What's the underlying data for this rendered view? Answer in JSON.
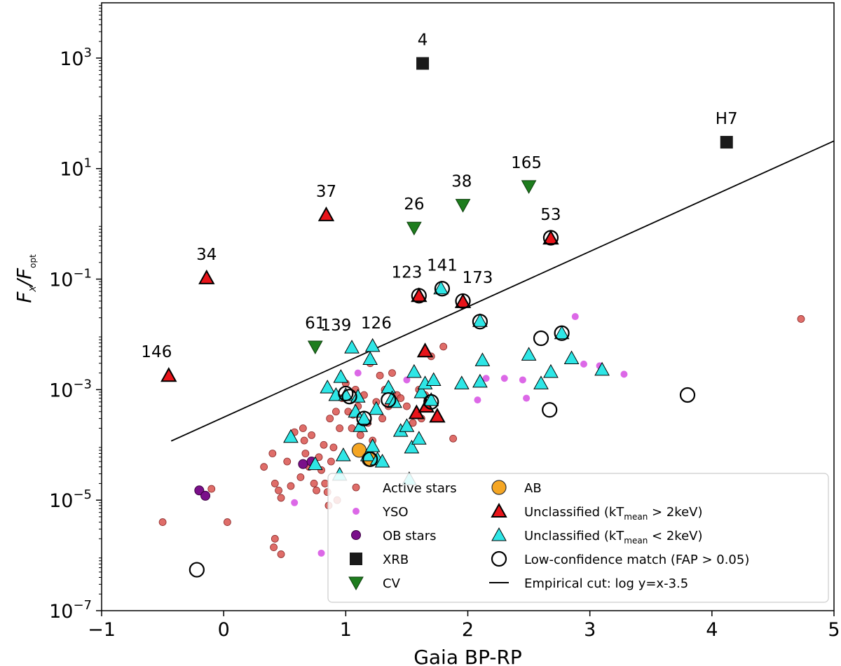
{
  "chart_data": {
    "type": "scatter",
    "title": "",
    "xlabel": "Gaia BP-RP",
    "ylabel": {
      "main": "F",
      "sub_x": "X",
      "sep": "/F",
      "sub_opt": "opt"
    },
    "xscale": "linear",
    "yscale": "log",
    "xlim": [
      -1,
      5
    ],
    "ylim": [
      1e-07,
      10000
    ],
    "x_ticks": [
      -1,
      0,
      1,
      2,
      3,
      4,
      5
    ],
    "x_tick_labels": [
      "−1",
      "0",
      "1",
      "2",
      "3",
      "4",
      "5"
    ],
    "y_ticks": [
      {
        "value": 1e-07,
        "base": "10",
        "exp": "−7"
      },
      {
        "value": 1e-05,
        "base": "10",
        "exp": "−5"
      },
      {
        "value": 0.001,
        "base": "10",
        "exp": "−3"
      },
      {
        "value": 0.1,
        "base": "10",
        "exp": "−1"
      },
      {
        "value": 10,
        "base": "10",
        "exp": "1"
      },
      {
        "value": 1000,
        "base": "10",
        "exp": "3"
      }
    ],
    "grid": false,
    "legend_position": "lower-right",
    "empirical_cut": {
      "label": "Empirical cut: log y=x-3.5",
      "x": [
        -0.43,
        5.0
      ],
      "log_y": [
        -3.93,
        1.5
      ]
    },
    "series": [
      {
        "name": "Active stars",
        "marker": "circle-small",
        "color": "#d9534f",
        "points": [
          [
            -0.5,
            4e-06
          ],
          [
            0.03,
            4e-06
          ],
          [
            -0.1,
            1.6e-05
          ],
          [
            0.33,
            4e-05
          ],
          [
            0.4,
            7e-05
          ],
          [
            0.42,
            2e-05
          ],
          [
            0.45,
            1.5e-05
          ],
          [
            0.47,
            1.1e-05
          ],
          [
            0.42,
            2e-06
          ],
          [
            0.41,
            1.4e-06
          ],
          [
            0.47,
            1.05e-06
          ],
          [
            0.52,
            5e-05
          ],
          [
            0.55,
            1.8e-05
          ],
          [
            0.58,
            0.00017
          ],
          [
            0.63,
            2.6e-05
          ],
          [
            0.65,
            0.0002
          ],
          [
            0.66,
            0.00012
          ],
          [
            0.67,
            7e-05
          ],
          [
            0.7,
            4e-05
          ],
          [
            0.72,
            0.00015
          ],
          [
            0.74,
            2e-05
          ],
          [
            0.76,
            1.5e-05
          ],
          [
            0.78,
            6e-05
          ],
          [
            0.8,
            3.5e-05
          ],
          [
            0.82,
            0.0001
          ],
          [
            0.83,
            2e-05
          ],
          [
            0.85,
            1.4e-05
          ],
          [
            0.86,
            8e-06
          ],
          [
            0.87,
            0.0003
          ],
          [
            0.88,
            5e-05
          ],
          [
            0.9,
            9e-05
          ],
          [
            0.92,
            0.0004
          ],
          [
            0.93,
            1e-05
          ],
          [
            0.95,
            0.0002
          ],
          [
            0.97,
            0.0007
          ],
          [
            1.0,
            0.0013
          ],
          [
            1.02,
            0.0004
          ],
          [
            1.05,
            0.0002
          ],
          [
            1.06,
            0.00035
          ],
          [
            1.08,
            0.001
          ],
          [
            1.1,
            0.0005
          ],
          [
            1.12,
            0.00015
          ],
          [
            1.15,
            0.0008
          ],
          [
            1.18,
            0.00025
          ],
          [
            1.2,
            0.003
          ],
          [
            1.22,
            0.00012
          ],
          [
            1.25,
            0.0006
          ],
          [
            1.28,
            0.0018
          ],
          [
            1.3,
            0.0003
          ],
          [
            1.32,
            0.001
          ],
          [
            1.35,
            0.0005
          ],
          [
            1.38,
            0.002
          ],
          [
            1.42,
            0.0008
          ],
          [
            1.45,
            0.0007
          ],
          [
            1.5,
            0.0005
          ],
          [
            1.55,
            0.00025
          ],
          [
            1.6,
            0.001
          ],
          [
            1.62,
            0.0003
          ],
          [
            1.65,
            0.0008
          ],
          [
            1.7,
            0.004
          ],
          [
            1.72,
            0.0015
          ],
          [
            1.8,
            0.006
          ],
          [
            1.88,
            0.00013
          ],
          [
            4.73,
            0.019
          ]
        ]
      },
      {
        "name": "YSO",
        "marker": "circle-small",
        "color": "#d64de3",
        "points": [
          [
            0.58,
            9e-06
          ],
          [
            0.8,
            1.1e-06
          ],
          [
            1.1,
            0.002
          ],
          [
            1.5,
            0.0015
          ],
          [
            2.08,
            0.00065
          ],
          [
            2.15,
            0.0016
          ],
          [
            2.3,
            0.0016
          ],
          [
            2.45,
            0.0015
          ],
          [
            2.48,
            0.0007
          ],
          [
            2.88,
            0.021
          ],
          [
            2.95,
            0.0029
          ],
          [
            3.08,
            0.0027
          ],
          [
            3.28,
            0.0019
          ]
        ]
      },
      {
        "name": "OB stars",
        "marker": "circle",
        "color": "#7a0f8a",
        "points": [
          [
            -0.2,
            1.5e-05
          ],
          [
            -0.15,
            1.2e-05
          ],
          [
            0.65,
            4.5e-05
          ],
          [
            0.72,
            5e-05
          ]
        ]
      },
      {
        "name": "XRB",
        "marker": "square",
        "color": "#1a1a1a",
        "points": [
          [
            1.63,
            800
          ],
          [
            4.12,
            30
          ]
        ]
      },
      {
        "name": "CV",
        "marker": "triangle-down",
        "color": "#1e7d1e",
        "points": [
          [
            0.75,
            0.006
          ],
          [
            1.56,
            0.85
          ],
          [
            1.96,
            2.2
          ],
          [
            2.5,
            4.8
          ]
        ]
      },
      {
        "name": "AB",
        "marker": "circle-large",
        "color": "#f5a623",
        "points": [
          [
            1.11,
            8e-05
          ],
          [
            1.19,
            5.5e-05
          ]
        ]
      },
      {
        "name": "Unclassified (kT_mean > 2keV)",
        "marker": "triangle-up",
        "color": "#e8141a",
        "points": [
          [
            -0.45,
            0.0018
          ],
          [
            -0.14,
            0.105
          ],
          [
            0.84,
            1.45
          ],
          [
            1.6,
            0.05
          ],
          [
            1.58,
            0.00038
          ],
          [
            1.65,
            0.005
          ],
          [
            1.66,
            0.0005
          ],
          [
            1.75,
            0.00033
          ],
          [
            1.96,
            0.039
          ],
          [
            2.68,
            0.55
          ]
        ]
      },
      {
        "name": "Unclassified (kT_mean < 2keV)",
        "marker": "triangle-up",
        "color": "#2ee6e6",
        "points": [
          [
            0.55,
            0.00014
          ],
          [
            0.75,
            4.5e-05
          ],
          [
            0.85,
            0.0011
          ],
          [
            0.92,
            0.0008
          ],
          [
            0.95,
            2.9e-05
          ],
          [
            0.96,
            0.0017
          ],
          [
            0.98,
            6.5e-05
          ],
          [
            1.0,
            0.0008
          ],
          [
            1.05,
            0.0058
          ],
          [
            1.08,
            0.0004
          ],
          [
            1.1,
            0.00075
          ],
          [
            1.12,
            0.00022
          ],
          [
            1.15,
            0.0003
          ],
          [
            1.18,
            6.5e-05
          ],
          [
            1.2,
            0.0036
          ],
          [
            1.22,
            9.5e-05
          ],
          [
            1.22,
            0.0062
          ],
          [
            1.25,
            0.00045
          ],
          [
            1.26,
            5.5e-05
          ],
          [
            1.3,
            5e-05
          ],
          [
            1.35,
            0.0011
          ],
          [
            1.38,
            0.0007
          ],
          [
            1.4,
            0.0006
          ],
          [
            1.45,
            0.00018
          ],
          [
            1.5,
            0.00022
          ],
          [
            1.52,
            2.4e-05
          ],
          [
            1.54,
            9e-05
          ],
          [
            1.56,
            0.0021
          ],
          [
            1.6,
            0.00013
          ],
          [
            1.62,
            0.0009
          ],
          [
            1.65,
            0.0013
          ],
          [
            1.7,
            0.00065
          ],
          [
            1.72,
            0.0015
          ],
          [
            1.78,
            0.068
          ],
          [
            1.95,
            0.0013
          ],
          [
            2.1,
            0.0175
          ],
          [
            2.1,
            0.0014
          ],
          [
            2.12,
            0.0034
          ],
          [
            2.5,
            0.0043
          ],
          [
            2.6,
            0.0013
          ],
          [
            2.68,
            0.0021
          ],
          [
            2.77,
            0.0105
          ],
          [
            2.85,
            0.0037
          ],
          [
            3.1,
            0.0023
          ]
        ]
      },
      {
        "name": "Low-confidence match (FAP > 0.05)",
        "marker": "ring",
        "color": "#000000",
        "points": [
          [
            -0.22,
            5.5e-07
          ],
          [
            1.0,
            0.00085
          ],
          [
            1.03,
            0.00075
          ],
          [
            1.15,
            0.0003
          ],
          [
            1.2,
            5.5e-05
          ],
          [
            1.35,
            0.00065
          ],
          [
            1.6,
            0.05
          ],
          [
            1.7,
            0.0006
          ],
          [
            1.79,
            0.067
          ],
          [
            1.96,
            0.04
          ],
          [
            2.1,
            0.017
          ],
          [
            2.6,
            0.0085
          ],
          [
            2.67,
            0.00043
          ],
          [
            2.68,
            0.56
          ],
          [
            2.77,
            0.0105
          ],
          [
            3.8,
            0.0008
          ]
        ]
      }
    ],
    "annotations": [
      {
        "text": "4",
        "x": 1.63,
        "y": 800
      },
      {
        "text": "H7",
        "x": 4.12,
        "y": 30
      },
      {
        "text": "165",
        "x": 2.48,
        "y": 4.8
      },
      {
        "text": "37",
        "x": 0.84,
        "y": 1.45
      },
      {
        "text": "38",
        "x": 1.95,
        "y": 2.2
      },
      {
        "text": "26",
        "x": 1.56,
        "y": 0.85
      },
      {
        "text": "53",
        "x": 2.68,
        "y": 0.55
      },
      {
        "text": "34",
        "x": -0.14,
        "y": 0.105
      },
      {
        "text": "141",
        "x": 1.79,
        "y": 0.067
      },
      {
        "text": "123",
        "x": 1.5,
        "y": 0.05
      },
      {
        "text": "173",
        "x": 2.08,
        "y": 0.04
      },
      {
        "text": "61",
        "x": 0.75,
        "y": 0.006
      },
      {
        "text": "139",
        "x": 0.92,
        "y": 0.0055
      },
      {
        "text": "126",
        "x": 1.25,
        "y": 0.006
      },
      {
        "text": "146",
        "x": -0.55,
        "y": 0.0018
      }
    ],
    "legend": {
      "left": [
        {
          "label": "Active stars",
          "symbol": "circle-small",
          "color": "#d9534f"
        },
        {
          "label": "YSO",
          "symbol": "circle-small",
          "color": "#d64de3"
        },
        {
          "label": "OB stars",
          "symbol": "circle",
          "color": "#7a0f8a"
        },
        {
          "label": "XRB",
          "symbol": "square",
          "color": "#1a1a1a"
        },
        {
          "label": "CV",
          "symbol": "triangle-down",
          "color": "#1e7d1e"
        }
      ],
      "right": [
        {
          "label": "AB",
          "symbol": "circle-large",
          "color": "#f5a623"
        },
        {
          "label": "Unclassified (kT",
          "sub": "mean",
          "tail": " > 2keV)",
          "symbol": "triangle-up",
          "color": "#e8141a"
        },
        {
          "label": "Unclassified (kT",
          "sub": "mean",
          "tail": " < 2keV)",
          "symbol": "triangle-up",
          "color": "#2ee6e6"
        },
        {
          "label": "Low-confidence match (FAP > 0.05)",
          "symbol": "ring",
          "color": "#000000"
        },
        {
          "label": "Empirical cut: log y=x-3.5",
          "symbol": "line",
          "color": "#000000"
        }
      ]
    }
  }
}
